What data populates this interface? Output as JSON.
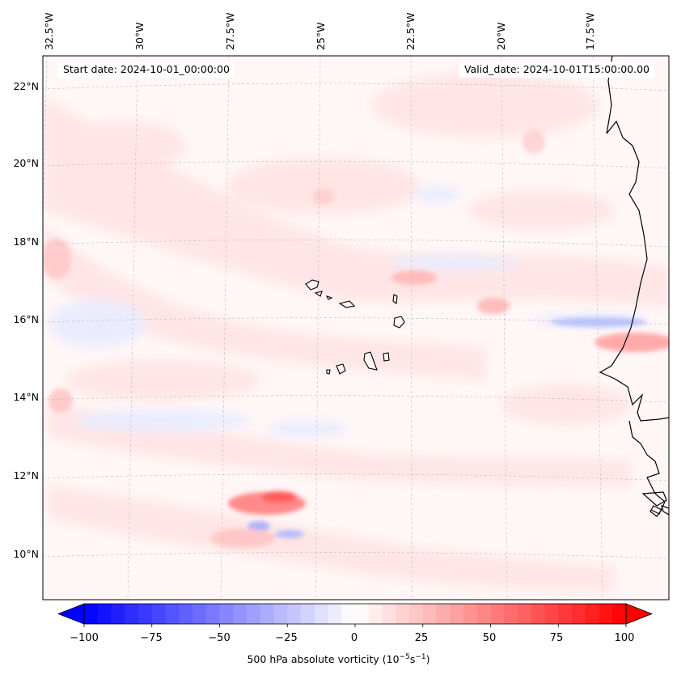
{
  "map": {
    "title": "500 hPa absolute vorticity",
    "lon_labels": [
      "32.5°W",
      "30°W",
      "27.5°W",
      "25°W",
      "22.5°W",
      "20°W",
      "17.5°W"
    ],
    "lat_labels": [
      "22°N",
      "20°N",
      "18°N",
      "16°N",
      "14°N",
      "12°N",
      "10°N"
    ],
    "start_date": "Start date: 2024-10-01_00:00:00",
    "valid_date": "Valid_date: 2024-10-01T15:00:00.00"
  },
  "colorbar": {
    "ticks": [
      "−100",
      "−75",
      "−50",
      "−25",
      "0",
      "25",
      "50",
      "75",
      "100"
    ],
    "min": -100,
    "max": 100,
    "levels": 41,
    "label_main": "500 hPa absolute vorticity (10",
    "label_exp1": "−5",
    "label_mid": "s",
    "label_exp2": "−1",
    "label_end": ")",
    "colors": {
      "negative": "#0000ff",
      "zero": "#ffffff",
      "positive": "#ff0000"
    }
  }
}
